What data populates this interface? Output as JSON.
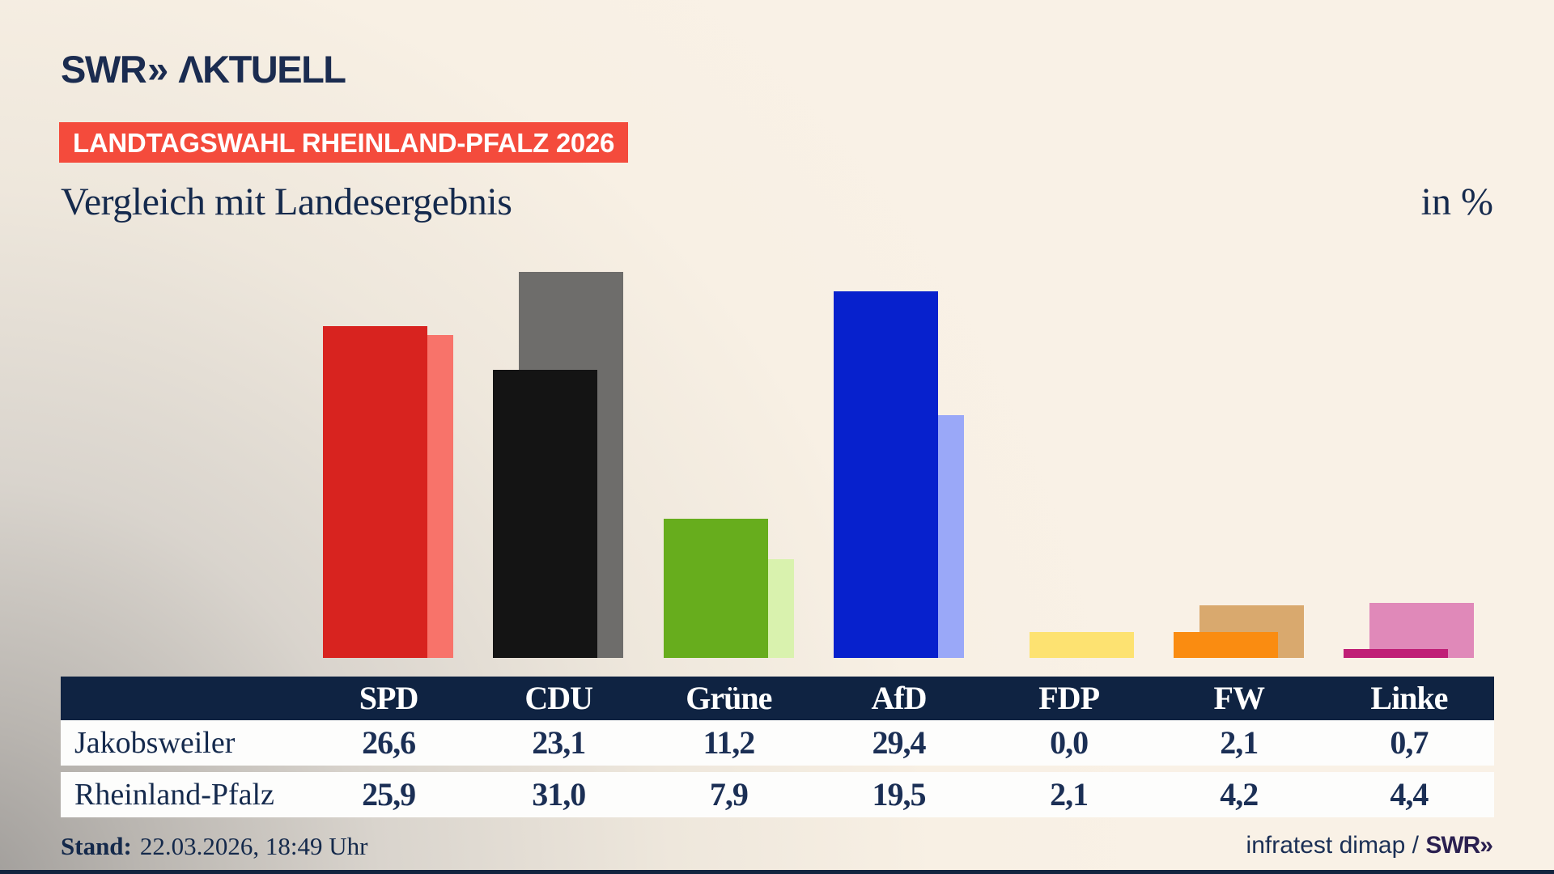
{
  "header": {
    "logo_swr": "SWR",
    "logo_chevrons": "»",
    "logo_aktuell": "ΛKTUELL",
    "badge": "LANDTAGSWAHL RHEINLAND-PFALZ 2026",
    "title": "Vergleich mit Landesergebnis",
    "unit_label": "in %"
  },
  "chart_data": {
    "type": "bar",
    "title": "Vergleich mit Landesergebnis",
    "unit": "in %",
    "categories": [
      "SPD",
      "CDU",
      "Grüne",
      "AfD",
      "FDP",
      "FW",
      "Linke"
    ],
    "series": [
      {
        "name": "Jakobsweiler",
        "values": [
          26.6,
          23.1,
          11.2,
          29.4,
          0.0,
          2.1,
          0.7
        ]
      },
      {
        "name": "Rheinland-Pfalz",
        "values": [
          25.9,
          31.0,
          7.9,
          19.5,
          2.1,
          4.2,
          4.4
        ]
      }
    ],
    "main_colors": [
      "#d8231f",
      "#141414",
      "#67ad1d",
      "#0721cd",
      "#ffdf3c",
      "#fa8c11",
      "#c01f76"
    ],
    "state_colors": [
      "#f8736a",
      "#6e6d6b",
      "#d9f2ae",
      "#9aa8f8",
      "#fde271",
      "#d9a96e",
      "#e089b9"
    ],
    "legend_position": "none",
    "grid": false,
    "value_axis_hidden": true
  },
  "table": {
    "party_headers": [
      "SPD",
      "CDU",
      "Grüne",
      "AfD",
      "FDP",
      "FW",
      "Linke"
    ],
    "rows": [
      {
        "label": "Jakobsweiler",
        "values": [
          "26,6",
          "23,1",
          "11,2",
          "29,4",
          "0,0",
          "2,1",
          "0,7"
        ]
      },
      {
        "label": "Rheinland-Pfalz",
        "values": [
          "25,9",
          "31,0",
          "7,9",
          "19,5",
          "2,1",
          "4,2",
          "4,4"
        ]
      }
    ]
  },
  "footer": {
    "stand_label": "Stand:",
    "stand_value": "22.03.2026, 18:49 Uhr",
    "source_text": "infratest dimap / ",
    "source_logo": "SWR»"
  },
  "colors": {
    "background": "#f8f0e4",
    "navy": "#152a4d",
    "table_header": "#0f2342",
    "badge_red": "#f44b3c",
    "swr_purple": "#2b2050"
  }
}
